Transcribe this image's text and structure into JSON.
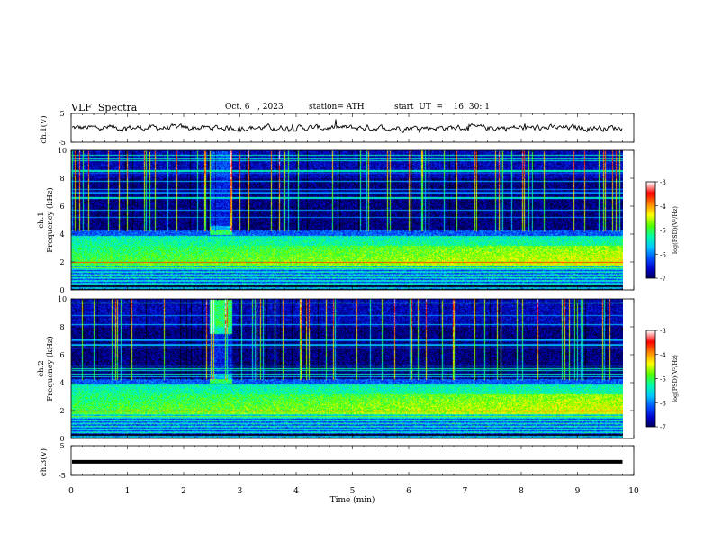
{
  "header": {
    "title": "VLF  Spectra",
    "date": "Oct. 6   , 2023",
    "station": "station= ATH",
    "start_ut": "start  UT  =    16: 30: 1"
  },
  "chart_data": [
    {
      "type": "line",
      "panel": "ch1-waveform",
      "ylabel": "ch.1(V)",
      "yticks": [
        "5",
        "-5"
      ],
      "ylim": [
        -5,
        5
      ],
      "xlim": [
        0,
        10
      ],
      "x_end": 9.8,
      "grid": false,
      "color": "#000000"
    },
    {
      "type": "heatmap",
      "panel": "ch1-spectrogram",
      "ylabel_channel": "ch.1",
      "ylabel": "Frequency  (kHz)",
      "yticks": [
        "0",
        "2",
        "4",
        "6",
        "8",
        "10"
      ],
      "ylim": [
        0,
        10
      ],
      "xlim": [
        0,
        10
      ],
      "x_end": 9.8,
      "colorbar": {
        "label": "log(PSD)(V²/Hz)",
        "ticks": [
          "-3",
          "-4",
          "-5",
          "-6",
          "-7"
        ],
        "range": [
          -7,
          -3
        ]
      }
    },
    {
      "type": "heatmap",
      "panel": "ch2-spectrogram",
      "ylabel_channel": "ch.2",
      "ylabel": "Frequency  (kHz)",
      "yticks": [
        "0",
        "2",
        "4",
        "6",
        "8",
        "10"
      ],
      "ylim": [
        0,
        10
      ],
      "xlim": [
        0,
        10
      ],
      "x_end": 9.8,
      "colorbar": {
        "label": "log(PSD)(V²/Hz)",
        "ticks": [
          "-3",
          "-4",
          "-5",
          "-6",
          "-7"
        ],
        "range": [
          -7,
          -3
        ]
      }
    },
    {
      "type": "line",
      "panel": "ch3-waveform",
      "ylabel": "ch.3(V)",
      "yticks": [
        "5",
        "-5"
      ],
      "ylim": [
        -5,
        5
      ],
      "xlim": [
        0,
        10
      ],
      "x_end": 9.8,
      "constant_value": -0.4,
      "grid": false,
      "color": "#000000"
    }
  ],
  "xaxis": {
    "label": "Time  (min)",
    "ticks": [
      "0",
      "1",
      "2",
      "3",
      "4",
      "5",
      "6",
      "7",
      "8",
      "9",
      "10"
    ]
  },
  "colormap": [
    "#000000",
    "#000044",
    "#0000cc",
    "#0050ff",
    "#00c8ff",
    "#00ffaa",
    "#55ff00",
    "#ffff00",
    "#ff8800",
    "#ff0000",
    "#ffffff"
  ]
}
